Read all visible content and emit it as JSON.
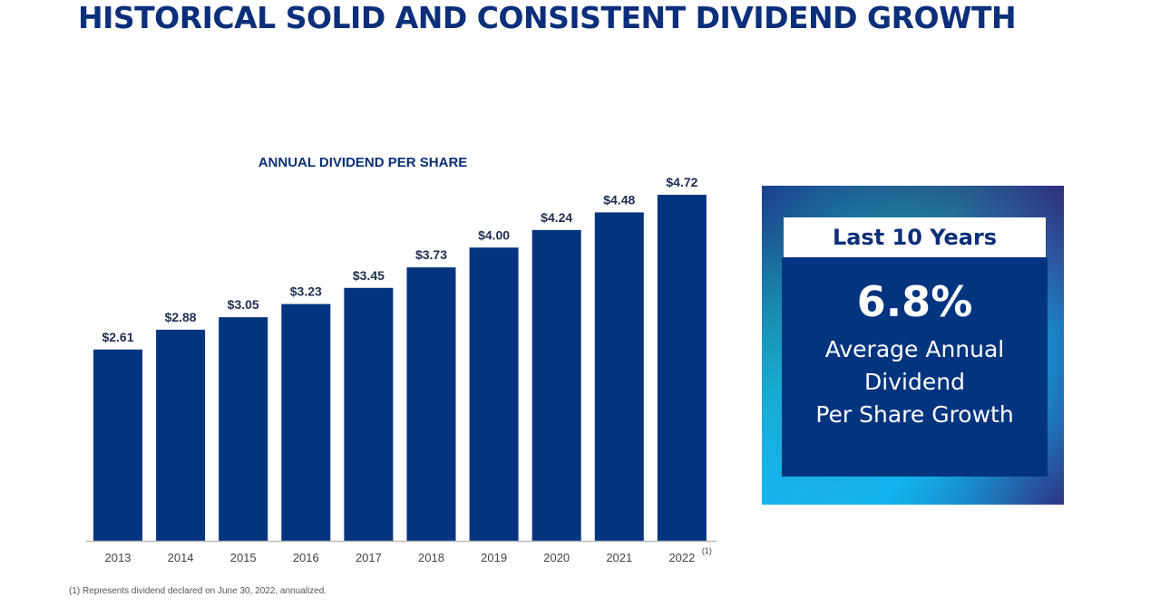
{
  "title": "HISTORICAL SOLID AND CONSISTENT DIVIDEND GROWTH",
  "chart_data": {
    "type": "bar",
    "title": "ANNUAL DIVIDEND PER SHARE",
    "categories": [
      "2013",
      "2014",
      "2015",
      "2016",
      "2017",
      "2018",
      "2019",
      "2020",
      "2021",
      "2022"
    ],
    "category_notes": {
      "2022": "(1)"
    },
    "values": [
      2.61,
      2.88,
      3.05,
      3.23,
      3.45,
      3.73,
      4.0,
      4.24,
      4.48,
      4.72
    ],
    "data_labels": [
      "$2.61",
      "$2.88",
      "$3.05",
      "$3.23",
      "$3.45",
      "$3.73",
      "$4.00",
      "$4.24",
      "$4.48",
      "$4.72"
    ],
    "xlabel": "",
    "ylabel": "",
    "ylim": [
      0,
      4.72
    ],
    "grid": false,
    "bar_color": "#03347f"
  },
  "footnote": "(1)   Represents dividend declared on June 30, 2022, annualized.",
  "callout": {
    "header": "Last 10 Years",
    "value": "6.8%",
    "line1": "Average Annual",
    "line2": "Dividend",
    "line3": "Per Share Growth"
  }
}
